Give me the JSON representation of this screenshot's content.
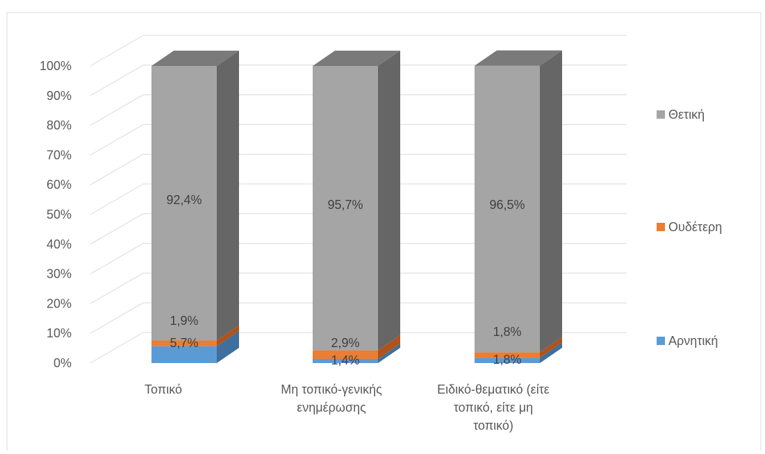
{
  "chart_data": {
    "type": "bar",
    "stacked": true,
    "percent_stacked": true,
    "three_d": true,
    "categories": [
      [
        "Τοπικό"
      ],
      [
        "Μη τοπικό-γενικής",
        "ενημέρωσης"
      ],
      [
        "Ειδικό-θεματικό (είτε",
        "τοπικό, είτε μη",
        "τοπικό)"
      ]
    ],
    "series": [
      {
        "name": "Αρνητική",
        "values": [
          5.7,
          1.4,
          1.8
        ],
        "labels": [
          "5,7%",
          "1,4%",
          "1,8%"
        ]
      },
      {
        "name": "Ουδέτερη",
        "values": [
          1.9,
          2.9,
          1.8
        ],
        "labels": [
          "1,9%",
          "2,9%",
          "1,8%"
        ]
      },
      {
        "name": "Θετική",
        "values": [
          92.4,
          95.7,
          96.5
        ],
        "labels": [
          "92,4%",
          "95,7%",
          "96,5%"
        ]
      }
    ],
    "yticks": [
      "0%",
      "10%",
      "20%",
      "30%",
      "40%",
      "50%",
      "60%",
      "70%",
      "80%",
      "90%",
      "100%"
    ],
    "ylim": [
      0,
      100
    ],
    "grid": true,
    "legend_position": "right",
    "colors": {
      "Αρνητική": {
        "front": "#5b9bd5",
        "side": "#3f6f9c",
        "top": "#4a84ba"
      },
      "Ουδέτερη": {
        "front": "#ed7d31",
        "side": "#b0521b",
        "top": "#c96526"
      },
      "Θετική": {
        "front": "#a5a5a5",
        "side": "#666666",
        "top": "#7a7a7a"
      }
    }
  }
}
